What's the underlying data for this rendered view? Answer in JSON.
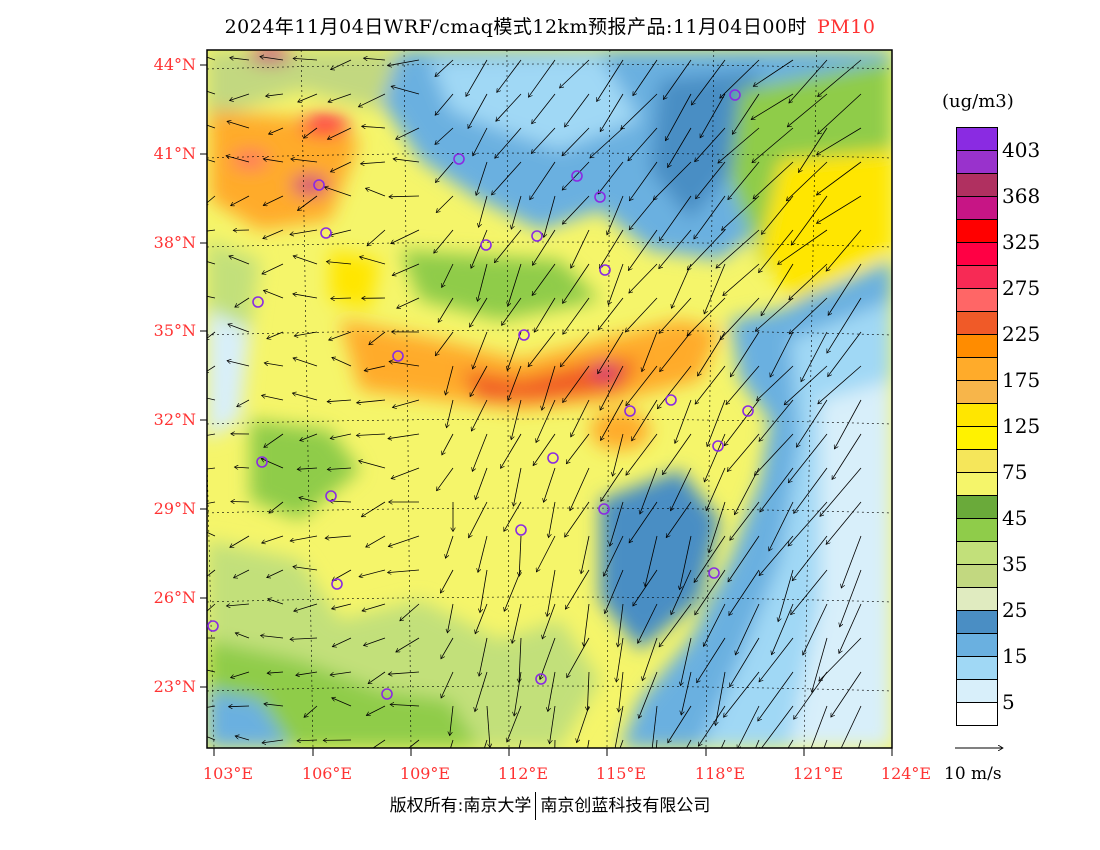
{
  "title": {
    "main": "2024年11月04日WRF/cmaq模式12km预报产品:11月04日00时",
    "pollutant": "PM10"
  },
  "lat_labels": [
    "44°N",
    "41°N",
    "38°N",
    "35°N",
    "32°N",
    "29°N",
    "26°N",
    "23°N"
  ],
  "lon_labels": [
    "103°E",
    "106°E",
    "109°E",
    "112°E",
    "115°E",
    "118°E",
    "121°E",
    "124°E"
  ],
  "legend": {
    "unit": "(ug/m3)",
    "colors": [
      "#8a2be2",
      "#9932cc",
      "#b03060",
      "#c71585",
      "#ff0000",
      "#ff0044",
      "#f72a55",
      "#ff6666",
      "#f05a28",
      "#ff8c00",
      "#ffab2a",
      "#f7b54a",
      "#ffe600",
      "#fff200",
      "#f5e65a",
      "#f5f56a",
      "#6aaa3a",
      "#8fcc4a",
      "#c2e07a",
      "#c2d880",
      "#e0ebc0",
      "#4a8ec4",
      "#6ab0e0",
      "#a0d8f5",
      "#d8effa",
      "#ffffff"
    ],
    "labels": [
      "403",
      "368",
      "325",
      "275",
      "225",
      "175",
      "125",
      "75",
      "45",
      "35",
      "25",
      "15",
      "5"
    ]
  },
  "wind_reference": "10 m/s",
  "footer": {
    "left": "版权所有:南京大学",
    "right": "南京创蓝科技有限公司"
  }
}
